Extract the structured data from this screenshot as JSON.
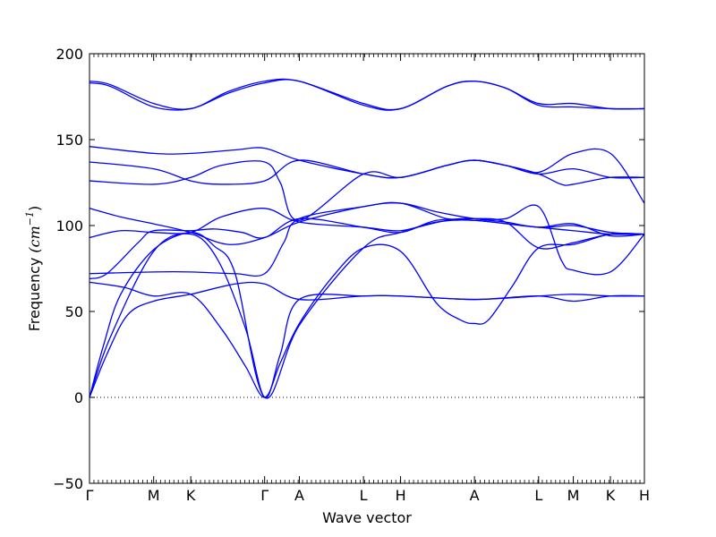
{
  "chart_data": {
    "type": "line",
    "title": "",
    "xlabel": "Wave vector",
    "ylabel": "Frequency",
    "ylabel_unit": "(cm",
    "ylabel_exp": "−1",
    "ylabel_close": ")",
    "ylim": [
      -50,
      200
    ],
    "yticks": [
      -50,
      0,
      50,
      100,
      150,
      200
    ],
    "ytick_labels": [
      "−50",
      "0",
      "50",
      "100",
      "150",
      "200"
    ],
    "x_range": [
      0,
      16
    ],
    "kpoints": [
      {
        "label": "Γ",
        "x": 0
      },
      {
        "label": "M",
        "x": 1.85
      },
      {
        "label": "K",
        "x": 2.92
      },
      {
        "label": "Γ",
        "x": 5.05
      },
      {
        "label": "A",
        "x": 6.05
      },
      {
        "label": "L",
        "x": 7.9
      },
      {
        "label": "H",
        "x": 8.97
      },
      {
        "label": "A",
        "x": 11.1
      },
      {
        "label": "L",
        "x": 12.95
      },
      {
        "label": "M",
        "x": 13.95
      },
      {
        "label": "K",
        "x": 15.02
      },
      {
        "label": "H",
        "x": 16
      }
    ],
    "zero_line": true,
    "grid": false,
    "line_color": "#0000ff",
    "series": [
      {
        "points": [
          [
            0,
            0
          ],
          [
            0.4,
            30
          ],
          [
            0.9,
            60
          ],
          [
            1.85,
            86
          ],
          [
            2.92,
            96
          ],
          [
            3.6,
            88
          ],
          [
            4.2,
            72
          ],
          [
            5.05,
            0
          ],
          [
            6.05,
            42
          ],
          [
            7.9,
            87
          ],
          [
            8.97,
            96
          ],
          [
            10.3,
            103
          ],
          [
            11.1,
            104
          ],
          [
            12,
            102
          ],
          [
            12.95,
            87
          ],
          [
            13.95,
            90
          ],
          [
            15.02,
            95
          ],
          [
            16,
            95
          ]
        ]
      },
      {
        "points": [
          [
            0,
            0
          ],
          [
            0.6,
            35
          ],
          [
            1.85,
            85
          ],
          [
            2.92,
            95
          ],
          [
            3.7,
            80
          ],
          [
            4.5,
            40
          ],
          [
            5.05,
            0
          ],
          [
            5.5,
            25
          ],
          [
            6.05,
            57
          ],
          [
            7.9,
            59
          ],
          [
            8.97,
            59
          ],
          [
            11.1,
            57
          ],
          [
            12.95,
            59
          ],
          [
            13.95,
            60
          ],
          [
            15.02,
            59
          ],
          [
            16,
            59
          ]
        ]
      },
      {
        "points": [
          [
            0,
            0
          ],
          [
            0.5,
            25
          ],
          [
            1.1,
            48
          ],
          [
            1.85,
            56
          ],
          [
            2.92,
            60
          ],
          [
            4.2,
            66
          ],
          [
            5.05,
            66
          ],
          [
            6.05,
            57
          ],
          [
            7.9,
            59
          ],
          [
            8.97,
            59
          ],
          [
            11.1,
            57
          ],
          [
            12.95,
            59
          ],
          [
            13.95,
            56
          ],
          [
            15.02,
            59
          ],
          [
            16,
            59
          ]
        ]
      },
      {
        "points": [
          [
            0,
            67
          ],
          [
            1,
            64
          ],
          [
            1.85,
            59
          ],
          [
            2.92,
            60
          ],
          [
            3.8,
            40
          ],
          [
            4.5,
            18
          ],
          [
            5.05,
            0
          ],
          [
            5.5,
            20
          ],
          [
            6.05,
            43
          ],
          [
            7,
            70
          ],
          [
            7.9,
            87
          ],
          [
            8.97,
            85
          ],
          [
            10,
            55
          ],
          [
            10.7,
            45
          ],
          [
            11.1,
            43
          ],
          [
            11.5,
            45
          ],
          [
            12.2,
            65
          ],
          [
            12.95,
            87
          ],
          [
            13.95,
            89
          ],
          [
            15.02,
            95
          ],
          [
            16,
            95
          ]
        ]
      },
      {
        "points": [
          [
            0,
            72
          ],
          [
            1.85,
            73
          ],
          [
            2.92,
            73
          ],
          [
            4.2,
            72
          ],
          [
            5.05,
            72
          ],
          [
            5.6,
            90
          ],
          [
            6.05,
            104
          ],
          [
            7.9,
            111
          ],
          [
            8.97,
            113
          ],
          [
            10.3,
            104
          ],
          [
            11.1,
            104
          ],
          [
            12,
            104
          ],
          [
            12.95,
            111
          ],
          [
            13.6,
            80
          ],
          [
            13.95,
            74
          ],
          [
            15.02,
            73
          ],
          [
            16,
            95
          ]
        ]
      },
      {
        "points": [
          [
            0,
            69
          ],
          [
            0.5,
            72
          ],
          [
            1.4,
            90
          ],
          [
            1.85,
            97
          ],
          [
            2.92,
            97
          ],
          [
            3.6,
            98
          ],
          [
            4.4,
            96
          ],
          [
            5.05,
            93
          ],
          [
            6.05,
            104
          ],
          [
            7.9,
            99
          ],
          [
            8.97,
            96
          ],
          [
            10,
            103
          ],
          [
            11.1,
            103
          ],
          [
            12.95,
            99
          ],
          [
            13.95,
            97
          ],
          [
            15.02,
            95
          ],
          [
            16,
            95
          ]
        ]
      },
      {
        "points": [
          [
            0,
            93
          ],
          [
            0.9,
            97
          ],
          [
            1.85,
            96
          ],
          [
            2.92,
            96
          ],
          [
            3.8,
            105
          ],
          [
            5.05,
            110
          ],
          [
            6.05,
            102
          ],
          [
            7.9,
            99
          ],
          [
            8.97,
            97
          ],
          [
            10,
            102
          ],
          [
            11.1,
            103
          ],
          [
            12.95,
            99
          ],
          [
            13.95,
            100
          ],
          [
            15.02,
            96
          ],
          [
            16,
            95
          ]
        ]
      },
      {
        "points": [
          [
            0,
            110
          ],
          [
            0.9,
            105
          ],
          [
            1.85,
            101
          ],
          [
            2.92,
            96
          ],
          [
            4,
            89
          ],
          [
            5.05,
            93
          ],
          [
            6.05,
            102
          ],
          [
            7.9,
            111
          ],
          [
            8.97,
            113
          ],
          [
            10,
            108
          ],
          [
            11.1,
            104
          ],
          [
            12,
            102
          ],
          [
            12.95,
            99
          ],
          [
            13.95,
            101
          ],
          [
            15.02,
            94
          ],
          [
            16,
            95
          ]
        ]
      },
      {
        "points": [
          [
            0,
            126
          ],
          [
            1.85,
            124
          ],
          [
            2.92,
            128
          ],
          [
            3.8,
            135
          ],
          [
            5.05,
            137
          ],
          [
            5.5,
            125
          ],
          [
            6.05,
            103
          ],
          [
            7.9,
            130
          ],
          [
            8.97,
            128
          ],
          [
            10.3,
            135
          ],
          [
            11.1,
            138
          ],
          [
            12,
            135
          ],
          [
            12.95,
            130
          ],
          [
            13.6,
            124
          ],
          [
            13.95,
            124
          ],
          [
            15.02,
            128
          ],
          [
            16,
            128
          ]
        ]
      },
      {
        "points": [
          [
            0,
            137
          ],
          [
            1.85,
            133
          ],
          [
            2.92,
            126
          ],
          [
            3.8,
            124
          ],
          [
            5.05,
            126
          ],
          [
            6.05,
            138
          ],
          [
            7.9,
            130
          ],
          [
            8.97,
            128
          ],
          [
            10.3,
            135
          ],
          [
            11.1,
            138
          ],
          [
            12,
            135
          ],
          [
            12.95,
            130
          ],
          [
            13.95,
            133
          ],
          [
            15.02,
            128
          ],
          [
            16,
            128
          ]
        ]
      },
      {
        "points": [
          [
            0,
            146
          ],
          [
            1.85,
            142
          ],
          [
            2.92,
            142
          ],
          [
            4.2,
            144
          ],
          [
            5.05,
            145
          ],
          [
            6.05,
            138
          ],
          [
            7.9,
            130
          ],
          [
            8.97,
            128
          ],
          [
            10.3,
            135
          ],
          [
            11.1,
            138
          ],
          [
            12,
            135
          ],
          [
            12.95,
            131
          ],
          [
            13.95,
            142
          ],
          [
            15.02,
            142
          ],
          [
            16,
            113
          ]
        ]
      },
      {
        "points": [
          [
            0,
            184
          ],
          [
            0.6,
            182
          ],
          [
            1.85,
            171
          ],
          [
            2.92,
            168
          ],
          [
            4,
            178
          ],
          [
            5.05,
            184
          ],
          [
            6.05,
            184
          ],
          [
            7.9,
            171
          ],
          [
            8.97,
            168
          ],
          [
            10.3,
            181
          ],
          [
            11.1,
            184
          ],
          [
            12,
            180
          ],
          [
            12.95,
            171
          ],
          [
            13.95,
            171
          ],
          [
            15.02,
            168
          ],
          [
            16,
            168
          ]
        ]
      },
      {
        "points": [
          [
            0,
            183
          ],
          [
            0.6,
            181
          ],
          [
            1.85,
            169
          ],
          [
            2.92,
            168
          ],
          [
            4,
            177
          ],
          [
            5.05,
            183
          ],
          [
            6.05,
            184
          ],
          [
            7.9,
            170
          ],
          [
            8.97,
            168
          ],
          [
            10.3,
            181
          ],
          [
            11.1,
            184
          ],
          [
            12,
            180
          ],
          [
            12.95,
            170
          ],
          [
            13.95,
            169
          ],
          [
            15.02,
            168
          ],
          [
            16,
            168
          ]
        ]
      }
    ]
  }
}
